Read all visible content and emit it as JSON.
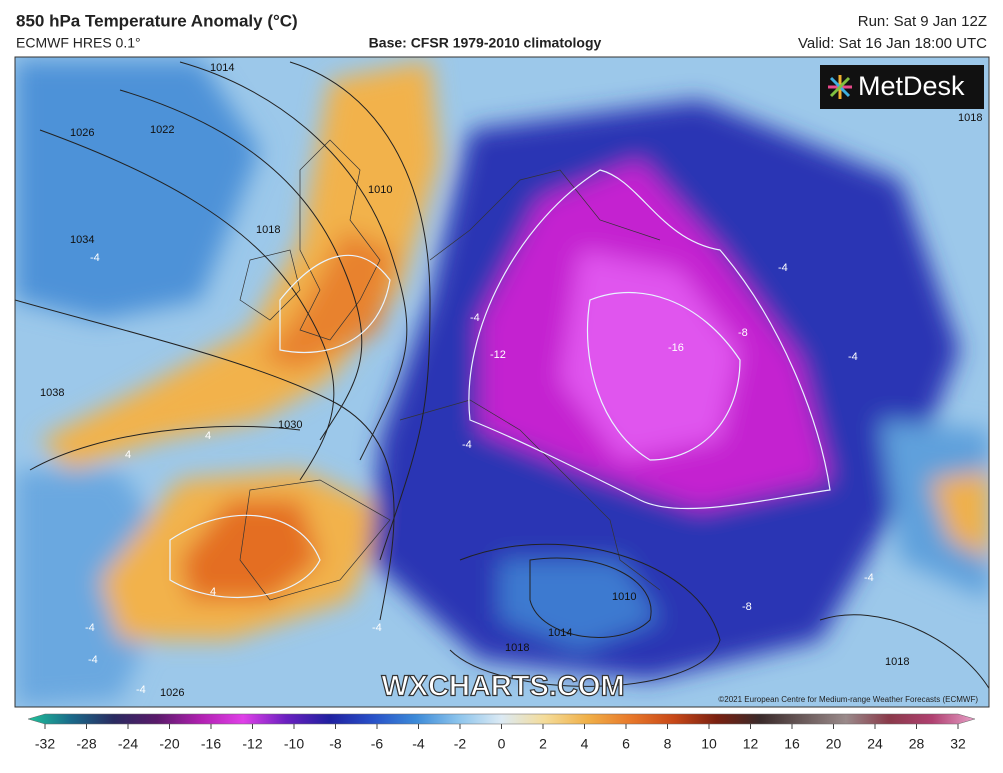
{
  "header": {
    "title": "850 hPa Temperature Anomaly (°C)",
    "model": "ECMWF HRES 0.1°",
    "base": "Base: CFSR 1979-2010 climatology",
    "run": "Run: Sat 9 Jan 12Z",
    "valid": "Valid: Sat 16 Jan 18:00 UTC"
  },
  "logo": "MetDesk",
  "watermark": "WXCHARTS.COM",
  "copyright": "©2021 European Centre for Medium-range Weather Forecasts (ECMWF)",
  "contour_labels": {
    "pressure": [
      "1014",
      "1026",
      "1022",
      "1010",
      "1034",
      "1038",
      "1030",
      "1014",
      "1010",
      "1018",
      "1018",
      "1018",
      "1026",
      "1018"
    ],
    "temperature": [
      "-4",
      "-4",
      "-4",
      "-4",
      "4",
      "4",
      "4",
      "-12",
      "-16",
      "-8",
      "-4",
      "-4",
      "-4",
      "-4",
      "-8",
      "-4",
      "-4"
    ]
  },
  "colorbar": {
    "ticks": [
      -32,
      -28,
      -24,
      -20,
      -16,
      -12,
      -10,
      -8,
      -6,
      -4,
      -2,
      0,
      2,
      4,
      6,
      8,
      10,
      12,
      16,
      20,
      24,
      28,
      32
    ],
    "colors": [
      "#1fc29a",
      "#1a6a8a",
      "#2a2a60",
      "#5a1a6a",
      "#b020b0",
      "#e040e8",
      "#6a20c0",
      "#2020a0",
      "#2850c8",
      "#3c8ad8",
      "#8cc4ec",
      "#dceaf4",
      "#f4dc9a",
      "#f0b048",
      "#e8782a",
      "#c84818",
      "#7a2010",
      "#3a2a2a",
      "#6a5a5a",
      "#9a8a8a",
      "#8a3a4a",
      "#b04070",
      "#e8a0c8"
    ]
  }
}
